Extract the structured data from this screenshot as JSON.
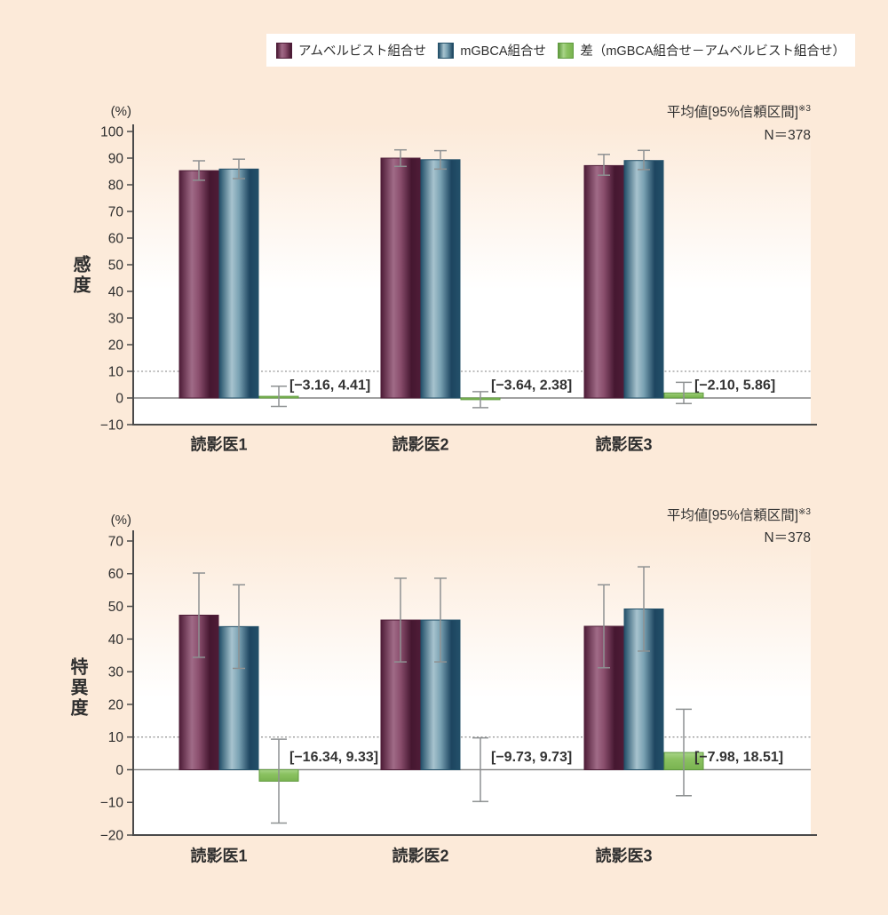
{
  "colors": {
    "background": "#fcead9",
    "plot_gradient_top": "#fcead9",
    "plot_gradient_bottom": "#ffffff",
    "axis": "#4a4a4a",
    "zero_line": "#808080",
    "dotted_line": "#9a9a9a",
    "error_bar": "#8e9192",
    "text": "#333333",
    "series_styles": [
      {
        "edge": "#4e1c37",
        "mid": "#a06b87",
        "core": "#8a4e6d",
        "dark": "#451730"
      },
      {
        "edge": "#235069",
        "mid": "#a7c3ce",
        "core": "#7aa2b3",
        "dark": "#1d4560"
      },
      {
        "edge": "#5f9a3e",
        "mid": "#a8d488",
        "core": "#8ac160",
        "dark": "#79b350"
      }
    ]
  },
  "legend": {
    "items": [
      {
        "label": "アムベルビスト組合せ"
      },
      {
        "label": "mGBCA組合せ"
      },
      {
        "label": "差（mGBCA組合せ－アムベルビスト組合せ）"
      }
    ]
  },
  "chart_data": [
    {
      "type": "bar",
      "title": "感度",
      "ylabel": "感度",
      "unit": "(%)",
      "ylim": [
        -10,
        100
      ],
      "ytick_step": 10,
      "ref_line": 10,
      "grid": "off",
      "legend_position": "top",
      "categories": [
        "読影医1",
        "読影医2",
        "読影医3"
      ],
      "series": [
        {
          "name": "アムベルビスト組合せ",
          "values": [
            85.3,
            90.0,
            87.2
          ],
          "ci": [
            [
              81.7,
              89.0
            ],
            [
              86.9,
              93.1
            ],
            [
              83.6,
              91.4
            ]
          ]
        },
        {
          "name": "mGBCA組合せ",
          "values": [
            85.9,
            89.4,
            89.1
          ],
          "ci": [
            [
              82.3,
              89.6
            ],
            [
              85.9,
              92.8
            ],
            [
              85.7,
              92.9
            ]
          ]
        },
        {
          "name": "差（mGBCA組合せ－アムベルビスト組合せ）",
          "values": [
            0.63,
            -0.63,
            1.88
          ],
          "ci": [
            [
              -3.16,
              4.41
            ],
            [
              -3.64,
              2.38
            ],
            [
              -2.1,
              5.86
            ]
          ],
          "ci_labels": [
            "[−3.16, 4.41]",
            "[−3.64, 2.38]",
            "[−2.10, 5.86]"
          ]
        }
      ],
      "annotation": {
        "mean_ci": "平均値[95%信頼区間]",
        "ref": "※3",
        "n": "N＝378"
      }
    },
    {
      "type": "bar",
      "title": "特異度",
      "ylabel": "特異度",
      "unit": "(%)",
      "ylim": [
        -20,
        70
      ],
      "ytick_step": 10,
      "ref_line": 10,
      "grid": "off",
      "legend_position": "top",
      "categories": [
        "読影医1",
        "読影医2",
        "読影医3"
      ],
      "series": [
        {
          "name": "アムベルビスト組合せ",
          "values": [
            47.3,
            45.8,
            43.9
          ],
          "ci": [
            [
              34.4,
              60.2
            ],
            [
              33.0,
              58.6
            ],
            [
              31.2,
              56.6
            ]
          ]
        },
        {
          "name": "mGBCA組合せ",
          "values": [
            43.8,
            45.8,
            49.2
          ],
          "ci": [
            [
              31.0,
              56.6
            ],
            [
              33.0,
              58.6
            ],
            [
              36.3,
              62.1
            ]
          ]
        },
        {
          "name": "差（mGBCA組合せ－アムベルビスト組合せ）",
          "values": [
            -3.51,
            0.0,
            5.27
          ],
          "ci": [
            [
              -16.34,
              9.33
            ],
            [
              -9.73,
              9.73
            ],
            [
              -7.98,
              18.51
            ]
          ],
          "ci_labels": [
            "[−16.34, 9.33]",
            "[−9.73, 9.73]",
            "[−7.98, 18.51]"
          ]
        }
      ],
      "annotation": {
        "mean_ci": "平均値[95%信頼区間]",
        "ref": "※3",
        "n": "N＝378"
      }
    }
  ]
}
